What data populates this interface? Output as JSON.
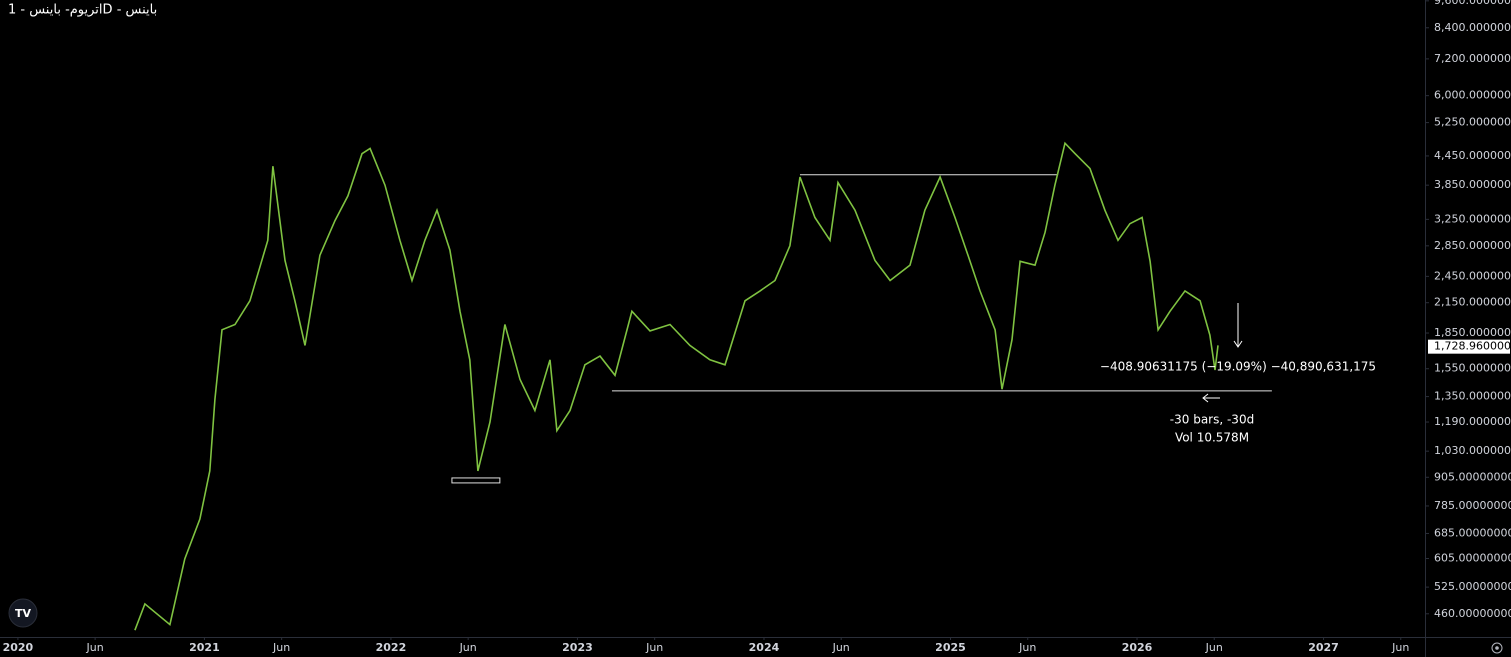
{
  "chart_data": {
    "type": "line",
    "title": "اتریوم- باینس - 1D - باینس",
    "log_scale": true,
    "grid": false,
    "color": "#7fc241",
    "x": [
      2020.627,
      2020.681,
      2020.815,
      2020.895,
      2020.976,
      2021.029,
      2021.056,
      2021.094,
      2021.164,
      2021.244,
      2021.34,
      2021.367,
      2021.432,
      2021.485,
      2021.539,
      2021.619,
      2021.7,
      2021.769,
      2021.845,
      2021.888,
      2021.968,
      2022.048,
      2022.113,
      2022.182,
      2022.247,
      2022.316,
      2022.37,
      2022.423,
      2022.466,
      2022.531,
      2022.611,
      2022.692,
      2022.772,
      2022.853,
      2022.89,
      2022.96,
      2023.04,
      2023.121,
      2023.201,
      2023.292,
      2023.389,
      2023.496,
      2023.603,
      2023.71,
      2023.791,
      2023.898,
      2023.979,
      2024.059,
      2024.139,
      2024.193,
      2024.273,
      2024.354,
      2024.397,
      2024.488,
      2024.595,
      2024.676,
      2024.783,
      2024.863,
      2024.944,
      2025.024,
      2025.094,
      2025.158,
      2025.239,
      2025.276,
      2025.33,
      2025.373,
      2025.453,
      2025.507,
      2025.56,
      2025.614,
      2025.668,
      2025.748,
      2025.828,
      2025.898,
      2025.962,
      2026.027,
      2026.07,
      2026.113,
      2026.177,
      2026.257,
      2026.338,
      2026.391,
      2026.418,
      2026.434
    ],
    "values": [
      424,
      483,
      436,
      604,
      736,
      934,
      1330,
      1880,
      1930,
      2170,
      2930,
      4230,
      2650,
      2170,
      1740,
      2720,
      3230,
      3650,
      4500,
      4620,
      3850,
      2930,
      2400,
      2930,
      3400,
      2790,
      2060,
      1620,
      934,
      1190,
      1930,
      1470,
      1260,
      1620,
      1140,
      1260,
      1580,
      1650,
      1500,
      2060,
      1870,
      1930,
      1740,
      1620,
      1580,
      2170,
      2280,
      2400,
      2850,
      4010,
      3280,
      2930,
      3900,
      3400,
      2650,
      2400,
      2590,
      3400,
      4010,
      3280,
      2720,
      2280,
      1880,
      1400,
      1790,
      2640,
      2590,
      3050,
      3850,
      4740,
      4500,
      4180,
      3400,
      2930,
      3180,
      3280,
      2640,
      1880,
      2060,
      2280,
      2170,
      1830,
      1540,
      1740
    ],
    "xlim": [
      2019.904,
      2027.544
    ],
    "ylim": [
      410,
      9640
    ],
    "xticks": [
      {
        "value": 2020,
        "label": "2020"
      },
      {
        "value": 2020.414,
        "label": "Jun"
      },
      {
        "value": 2021,
        "label": "2021"
      },
      {
        "value": 2021.414,
        "label": "Jun"
      },
      {
        "value": 2022,
        "label": "2022"
      },
      {
        "value": 2022.414,
        "label": "Jun"
      },
      {
        "value": 2023,
        "label": "2023"
      },
      {
        "value": 2023.414,
        "label": "Jun"
      },
      {
        "value": 2024,
        "label": "2024"
      },
      {
        "value": 2024.414,
        "label": "Jun"
      },
      {
        "value": 2025,
        "label": "2025"
      },
      {
        "value": 2025.414,
        "label": "Jun"
      },
      {
        "value": 2026,
        "label": "2026"
      },
      {
        "value": 2026.414,
        "label": "Jun"
      },
      {
        "value": 2027,
        "label": "2027"
      },
      {
        "value": 2027.414,
        "label": "Jun"
      }
    ],
    "yticks": [
      {
        "value": 9600,
        "label": "9,600.00000000"
      },
      {
        "value": 8400,
        "label": "8,400.00000000"
      },
      {
        "value": 7200,
        "label": "7,200.00000000"
      },
      {
        "value": 6000,
        "label": "6,000.00000000"
      },
      {
        "value": 5250,
        "label": "5,250.00000000"
      },
      {
        "value": 4450,
        "label": "4,450.00000000"
      },
      {
        "value": 3850,
        "label": "3,850.00000000"
      },
      {
        "value": 3250,
        "label": "3,250.00000000"
      },
      {
        "value": 2850,
        "label": "2,850.00000000"
      },
      {
        "value": 2450,
        "label": "2,450.00000000"
      },
      {
        "value": 2150,
        "label": "2,150.00000000"
      },
      {
        "value": 1850,
        "label": "1,850.00000000"
      },
      {
        "value": 1550,
        "label": "1,550.00000000"
      },
      {
        "value": 1350,
        "label": "1,350.00000000"
      },
      {
        "value": 1190,
        "label": "1,190.00000000"
      },
      {
        "value": 1030,
        "label": "1,030.00000000"
      },
      {
        "value": 905,
        "label": "905.00000000"
      },
      {
        "value": 785,
        "label": "785.00000000"
      },
      {
        "value": 685,
        "label": "685.00000000"
      },
      {
        "value": 605,
        "label": "605.00000000"
      },
      {
        "value": 525,
        "label": "525.00000000"
      },
      {
        "value": 460,
        "label": "460.00000000"
      }
    ],
    "last_price": {
      "value": 1728.96,
      "label": "1,728.96000000"
    },
    "levels": [
      {
        "value": 4053,
        "x": [
          2024.193,
          2025.577
        ]
      },
      {
        "value": 1389,
        "x": [
          2023.185,
          2026.723
        ]
      }
    ],
    "box": {
      "x": [
        2022.327,
        2022.584
      ],
      "y": [
        880,
        902
      ]
    },
    "annotations": [
      "−408.90631175 (−19.09%) −40,890,631,175",
      "-30 bars, -30d",
      "Vol 10.578M"
    ]
  }
}
